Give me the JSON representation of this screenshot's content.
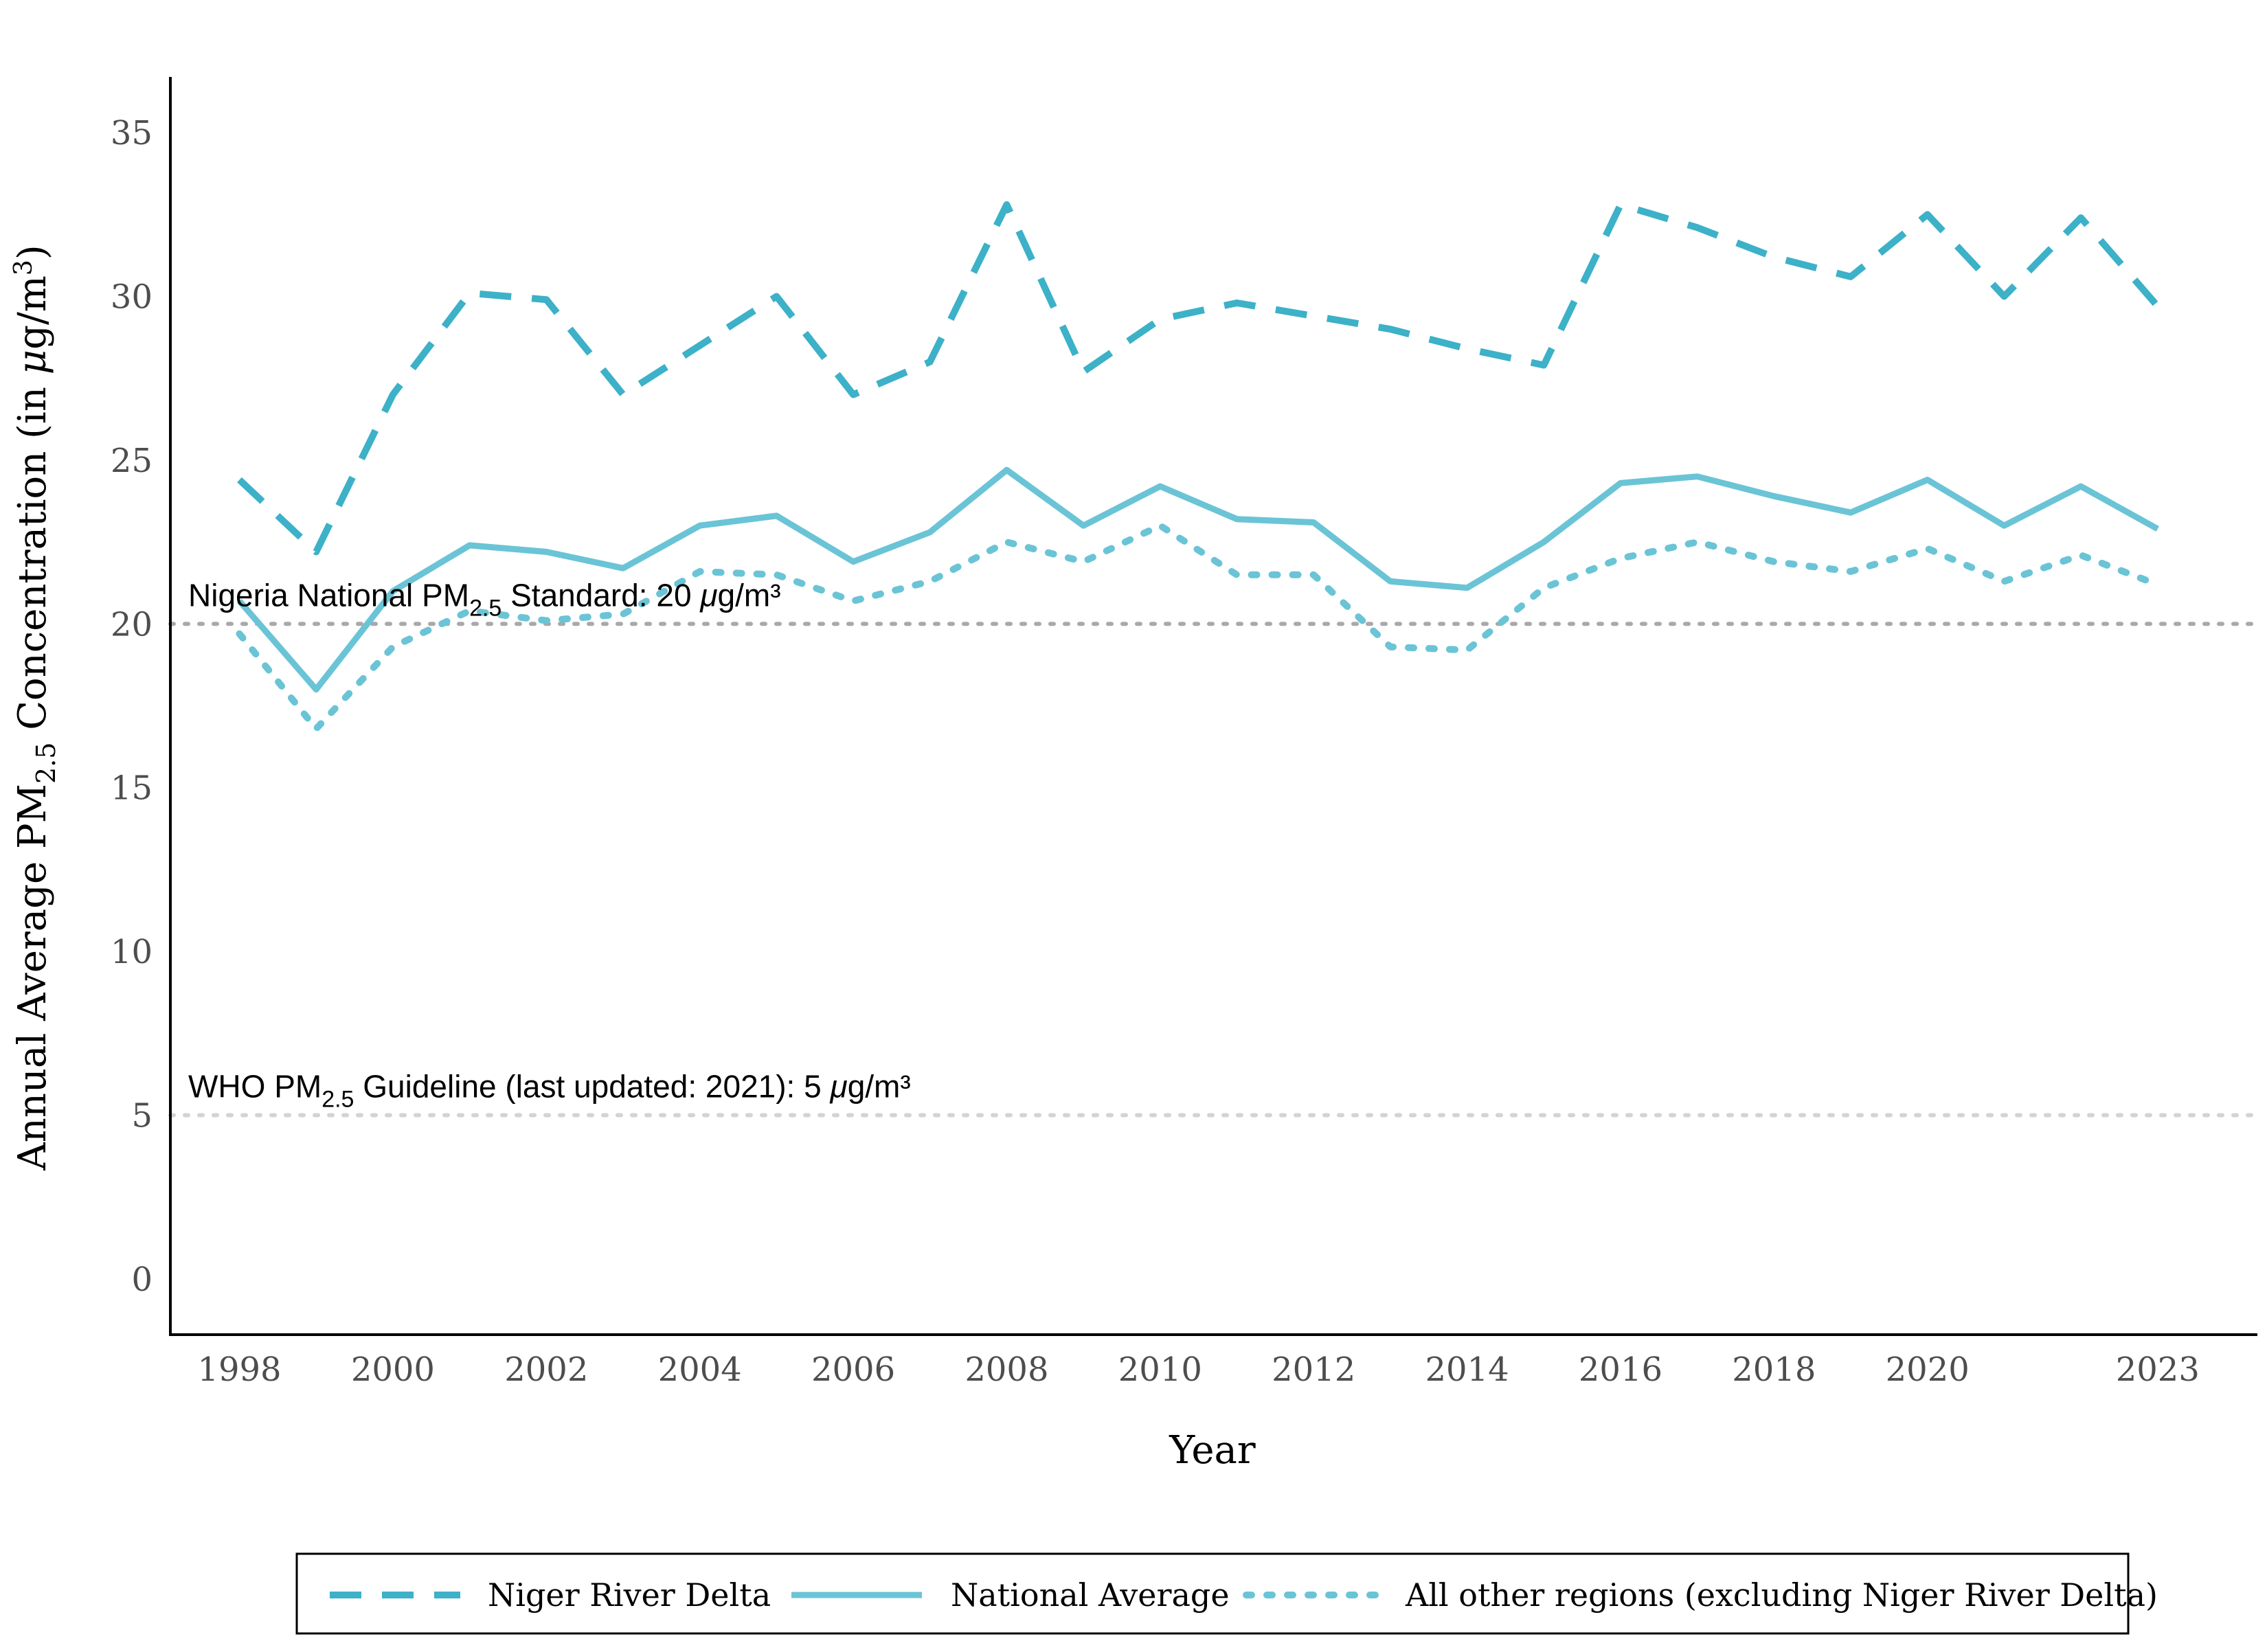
{
  "chart_data": {
    "type": "line",
    "xlabel": "Year",
    "ylabel": {
      "prefix": "Annual Average  PM",
      "sub": "2.5",
      "middle": "  Concentration (in ",
      "mu": "μ",
      "unit": "g/m",
      "sup": "3",
      "suffix": ")"
    },
    "x_ticks": [
      1998,
      2000,
      2002,
      2004,
      2006,
      2008,
      2010,
      2012,
      2014,
      2016,
      2018,
      2020,
      2023
    ],
    "y_ticks": [
      0,
      5,
      10,
      15,
      20,
      25,
      30,
      35
    ],
    "xlim": [
      1997.1,
      2024.3
    ],
    "ylim": [
      -1.7,
      36.7
    ],
    "grid": false,
    "legend_position": "bottom",
    "x": [
      1998,
      1999,
      2000,
      2001,
      2002,
      2003,
      2004,
      2005,
      2006,
      2007,
      2008,
      2009,
      2010,
      2011,
      2012,
      2013,
      2014,
      2015,
      2016,
      2017,
      2018,
      2019,
      2020,
      2021,
      2022,
      2023
    ],
    "series": [
      {
        "name": "Niger River Delta",
        "style": "dashed",
        "color": "#3cb1c8",
        "values": [
          24.4,
          22.2,
          27.0,
          30.1,
          29.9,
          27.0,
          28.5,
          30.0,
          27.0,
          28.0,
          32.8,
          27.7,
          29.3,
          29.8,
          29.4,
          29.0,
          28.4,
          27.9,
          32.8,
          32.1,
          31.2,
          30.6,
          32.5,
          30.0,
          32.4,
          29.7
        ]
      },
      {
        "name": "National Average",
        "style": "solid",
        "color": "#6ac4d6",
        "values": [
          20.7,
          18.0,
          21.0,
          22.4,
          22.2,
          21.7,
          23.0,
          23.3,
          21.9,
          22.8,
          24.7,
          23.0,
          24.2,
          23.2,
          23.1,
          21.3,
          21.1,
          22.5,
          24.3,
          24.5,
          23.9,
          23.4,
          24.4,
          23.0,
          24.2,
          22.9
        ]
      },
      {
        "name": "All other regions (excluding Niger River Delta)",
        "style": "dotted",
        "color": "#6ac4d6",
        "values": [
          19.7,
          16.8,
          19.3,
          20.4,
          20.1,
          20.3,
          21.6,
          21.5,
          20.7,
          21.3,
          22.5,
          21.9,
          23.0,
          21.5,
          21.5,
          19.3,
          19.2,
          21.1,
          22.0,
          22.5,
          21.9,
          21.6,
          22.3,
          21.3,
          22.1,
          21.2
        ]
      }
    ],
    "reference_lines": [
      {
        "value": 20,
        "color": "#a9a9a9",
        "label": {
          "prefix": "Nigeria National PM",
          "sub": "2.5",
          "middle": " Standard: 20 ",
          "mu": "μ",
          "suffix": "g/m³"
        }
      },
      {
        "value": 5,
        "color": "#d3d3d3",
        "label": {
          "prefix": "WHO PM",
          "sub": "2.5",
          "middle": " Guideline (last updated: 2021): 5 ",
          "mu": "μ",
          "suffix": "g/m³"
        }
      }
    ]
  }
}
